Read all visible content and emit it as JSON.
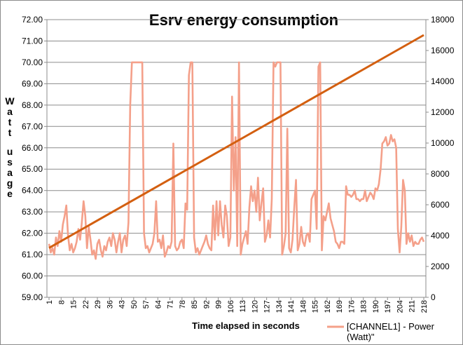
{
  "chart_data": {
    "type": "line",
    "title": "Esrv energy consumption",
    "xlabel": "Time elapsed in seconds",
    "ylabel_words": [
      "Watt",
      "usage"
    ],
    "y_left": {
      "lim": [
        59,
        72
      ],
      "ticks": [
        "59.00",
        "60.00",
        "61.00",
        "62.00",
        "63.00",
        "64.00",
        "65.00",
        "66.00",
        "67.00",
        "68.00",
        "69.00",
        "70.00",
        "71.00",
        "72.00"
      ]
    },
    "y_right": {
      "lim": [
        0,
        18000
      ],
      "ticks": [
        "0",
        "2000",
        "4000",
        "6000",
        "8000",
        "10000",
        "12000",
        "14000",
        "16000",
        "18000"
      ]
    },
    "x": {
      "lim": [
        1,
        218
      ],
      "ticks": [
        "1",
        "8",
        "15",
        "22",
        "29",
        "36",
        "43",
        "50",
        "57",
        "64",
        "71",
        "78",
        "85",
        "92",
        "99",
        "106",
        "113",
        "120",
        "127",
        "134",
        "141",
        "148",
        "155",
        "162",
        "169",
        "176",
        "183",
        "190",
        "197",
        "204",
        "211",
        "218"
      ]
    },
    "grid": true,
    "legend": {
      "position": "bottom-right"
    },
    "series": [
      {
        "name": "[CHANNEL1] - Power (Watt)\"",
        "axis": "left",
        "color": "#f4a08a",
        "points": [
          [
            1,
            61.5
          ],
          [
            2,
            61.1
          ],
          [
            3,
            61.3
          ],
          [
            4,
            61.0
          ],
          [
            5,
            61.8
          ],
          [
            6,
            61.4
          ],
          [
            7,
            62.1
          ],
          [
            8,
            61.6
          ],
          [
            9,
            62.4
          ],
          [
            10,
            62.8
          ],
          [
            11,
            63.3
          ],
          [
            12,
            61.9
          ],
          [
            13,
            61.2
          ],
          [
            14,
            61.5
          ],
          [
            15,
            61.1
          ],
          [
            16,
            61.3
          ],
          [
            17,
            61.6
          ],
          [
            18,
            62.2
          ],
          [
            19,
            61.7
          ],
          [
            20,
            62.5
          ],
          [
            21,
            63.5
          ],
          [
            22,
            62.8
          ],
          [
            23,
            61.3
          ],
          [
            24,
            62.3
          ],
          [
            25,
            61.7
          ],
          [
            26,
            61.0
          ],
          [
            27,
            61.2
          ],
          [
            28,
            60.8
          ],
          [
            29,
            61.5
          ],
          [
            30,
            61.7
          ],
          [
            31,
            61.2
          ],
          [
            32,
            60.9
          ],
          [
            33,
            61.4
          ],
          [
            34,
            61.2
          ],
          [
            35,
            61.6
          ],
          [
            36,
            61.8
          ],
          [
            37,
            61.4
          ],
          [
            38,
            62.0
          ],
          [
            39,
            61.7
          ],
          [
            40,
            61.1
          ],
          [
            41,
            61.6
          ],
          [
            42,
            62.0
          ],
          [
            43,
            61.1
          ],
          [
            44,
            61.7
          ],
          [
            45,
            61.9
          ],
          [
            46,
            61.4
          ],
          [
            47,
            62.5
          ],
          [
            48,
            68.0
          ],
          [
            49,
            70.0
          ],
          [
            50,
            70.0
          ],
          [
            51,
            70.0
          ],
          [
            52,
            70.0
          ],
          [
            53,
            70.0
          ],
          [
            54,
            70.0
          ],
          [
            55,
            70.0
          ],
          [
            56,
            62.0
          ],
          [
            57,
            61.3
          ],
          [
            58,
            61.4
          ],
          [
            59,
            61.1
          ],
          [
            60,
            61.3
          ],
          [
            61,
            61.5
          ],
          [
            62,
            62.0
          ],
          [
            63,
            63.5
          ],
          [
            64,
            61.6
          ],
          [
            65,
            61.7
          ],
          [
            66,
            61.3
          ],
          [
            67,
            61.9
          ],
          [
            68,
            60.9
          ],
          [
            69,
            61.1
          ],
          [
            70,
            61.4
          ],
          [
            71,
            61.3
          ],
          [
            72,
            61.6
          ],
          [
            73,
            66.2
          ],
          [
            74,
            61.4
          ],
          [
            75,
            61.2
          ],
          [
            76,
            61.3
          ],
          [
            77,
            61.6
          ],
          [
            78,
            61.7
          ],
          [
            79,
            61.3
          ],
          [
            80,
            63.4
          ],
          [
            81,
            63.1
          ],
          [
            82,
            69.4
          ],
          [
            83,
            70.0
          ],
          [
            84,
            70.0
          ],
          [
            85,
            61.8
          ],
          [
            86,
            61.1
          ],
          [
            87,
            61.3
          ],
          [
            88,
            61.0
          ],
          [
            89,
            61.2
          ],
          [
            90,
            61.4
          ],
          [
            91,
            61.6
          ],
          [
            92,
            61.9
          ],
          [
            93,
            61.5
          ],
          [
            94,
            61.3
          ],
          [
            95,
            61.2
          ],
          [
            96,
            63.3
          ],
          [
            97,
            61.7
          ],
          [
            98,
            63.5
          ],
          [
            99,
            61.9
          ],
          [
            100,
            63.5
          ],
          [
            101,
            62.4
          ],
          [
            102,
            61.8
          ],
          [
            103,
            63.3
          ],
          [
            104,
            62.8
          ],
          [
            105,
            61.4
          ],
          [
            106,
            61.8
          ],
          [
            107,
            68.4
          ],
          [
            108,
            64.0
          ],
          [
            109,
            66.5
          ],
          [
            110,
            61.4
          ],
          [
            111,
            70.0
          ],
          [
            112,
            61.0
          ],
          [
            113,
            61.5
          ],
          [
            114,
            61.8
          ],
          [
            115,
            62.1
          ],
          [
            116,
            61.5
          ],
          [
            117,
            63.2
          ],
          [
            118,
            64.2
          ],
          [
            119,
            63.5
          ],
          [
            120,
            64.0
          ],
          [
            121,
            63.0
          ],
          [
            122,
            64.6
          ],
          [
            123,
            62.6
          ],
          [
            124,
            63.4
          ],
          [
            125,
            64.1
          ],
          [
            126,
            61.6
          ],
          [
            127,
            61.9
          ],
          [
            128,
            62.6
          ],
          [
            129,
            61.8
          ],
          [
            130,
            63.6
          ],
          [
            131,
            70.0
          ],
          [
            132,
            69.8
          ],
          [
            133,
            70.0
          ],
          [
            134,
            70.0
          ],
          [
            135,
            70.0
          ],
          [
            136,
            61.0
          ],
          [
            137,
            61.4
          ],
          [
            138,
            62.0
          ],
          [
            139,
            66.9
          ],
          [
            140,
            61.3
          ],
          [
            141,
            61.1
          ],
          [
            142,
            61.7
          ],
          [
            143,
            63.2
          ],
          [
            144,
            64.5
          ],
          [
            145,
            61.2
          ],
          [
            146,
            61.5
          ],
          [
            147,
            62.3
          ],
          [
            148,
            61.6
          ],
          [
            149,
            61.4
          ],
          [
            150,
            61.9
          ],
          [
            151,
            62.0
          ],
          [
            152,
            61.6
          ],
          [
            153,
            63.6
          ],
          [
            154,
            63.8
          ],
          [
            155,
            64.0
          ],
          [
            156,
            62.2
          ],
          [
            157,
            69.8
          ],
          [
            158,
            70.0
          ],
          [
            159,
            61.2
          ],
          [
            160,
            62.8
          ],
          [
            161,
            62.6
          ],
          [
            162,
            63.0
          ],
          [
            163,
            63.4
          ],
          [
            164,
            62.7
          ],
          [
            165,
            62.4
          ],
          [
            166,
            62.1
          ],
          [
            167,
            61.6
          ],
          [
            168,
            61.5
          ],
          [
            169,
            61.3
          ],
          [
            170,
            61.6
          ],
          [
            171,
            61.6
          ],
          [
            172,
            61.5
          ],
          [
            173,
            64.2
          ],
          [
            174,
            63.8
          ],
          [
            175,
            63.8
          ],
          [
            176,
            63.7
          ],
          [
            177,
            63.8
          ],
          [
            178,
            64.0
          ],
          [
            179,
            63.6
          ],
          [
            180,
            63.6
          ],
          [
            181,
            63.5
          ],
          [
            182,
            63.6
          ],
          [
            183,
            63.6
          ],
          [
            184,
            64.0
          ],
          [
            185,
            63.5
          ],
          [
            186,
            63.7
          ],
          [
            187,
            63.9
          ],
          [
            188,
            63.8
          ],
          [
            189,
            63.6
          ],
          [
            190,
            64.1
          ],
          [
            191,
            64.0
          ],
          [
            192,
            64.3
          ],
          [
            193,
            65.0
          ],
          [
            194,
            66.2
          ],
          [
            195,
            66.3
          ],
          [
            196,
            66.5
          ],
          [
            197,
            66.1
          ],
          [
            198,
            66.2
          ],
          [
            199,
            66.6
          ],
          [
            200,
            66.3
          ],
          [
            201,
            66.4
          ],
          [
            202,
            66.0
          ],
          [
            203,
            62.2
          ],
          [
            204,
            61.1
          ],
          [
            205,
            62.3
          ],
          [
            206,
            64.5
          ],
          [
            207,
            64.0
          ],
          [
            208,
            61.5
          ],
          [
            209,
            62.0
          ],
          [
            210,
            61.6
          ],
          [
            211,
            61.9
          ],
          [
            212,
            61.4
          ],
          [
            213,
            61.6
          ],
          [
            214,
            61.5
          ],
          [
            215,
            61.5
          ],
          [
            216,
            61.7
          ],
          [
            217,
            61.8
          ],
          [
            218,
            61.6
          ]
        ]
      },
      {
        "name": "",
        "axis": "right",
        "color": "#d35f10",
        "points": [
          [
            1,
            3200
          ],
          [
            218,
            17000
          ]
        ]
      }
    ]
  }
}
